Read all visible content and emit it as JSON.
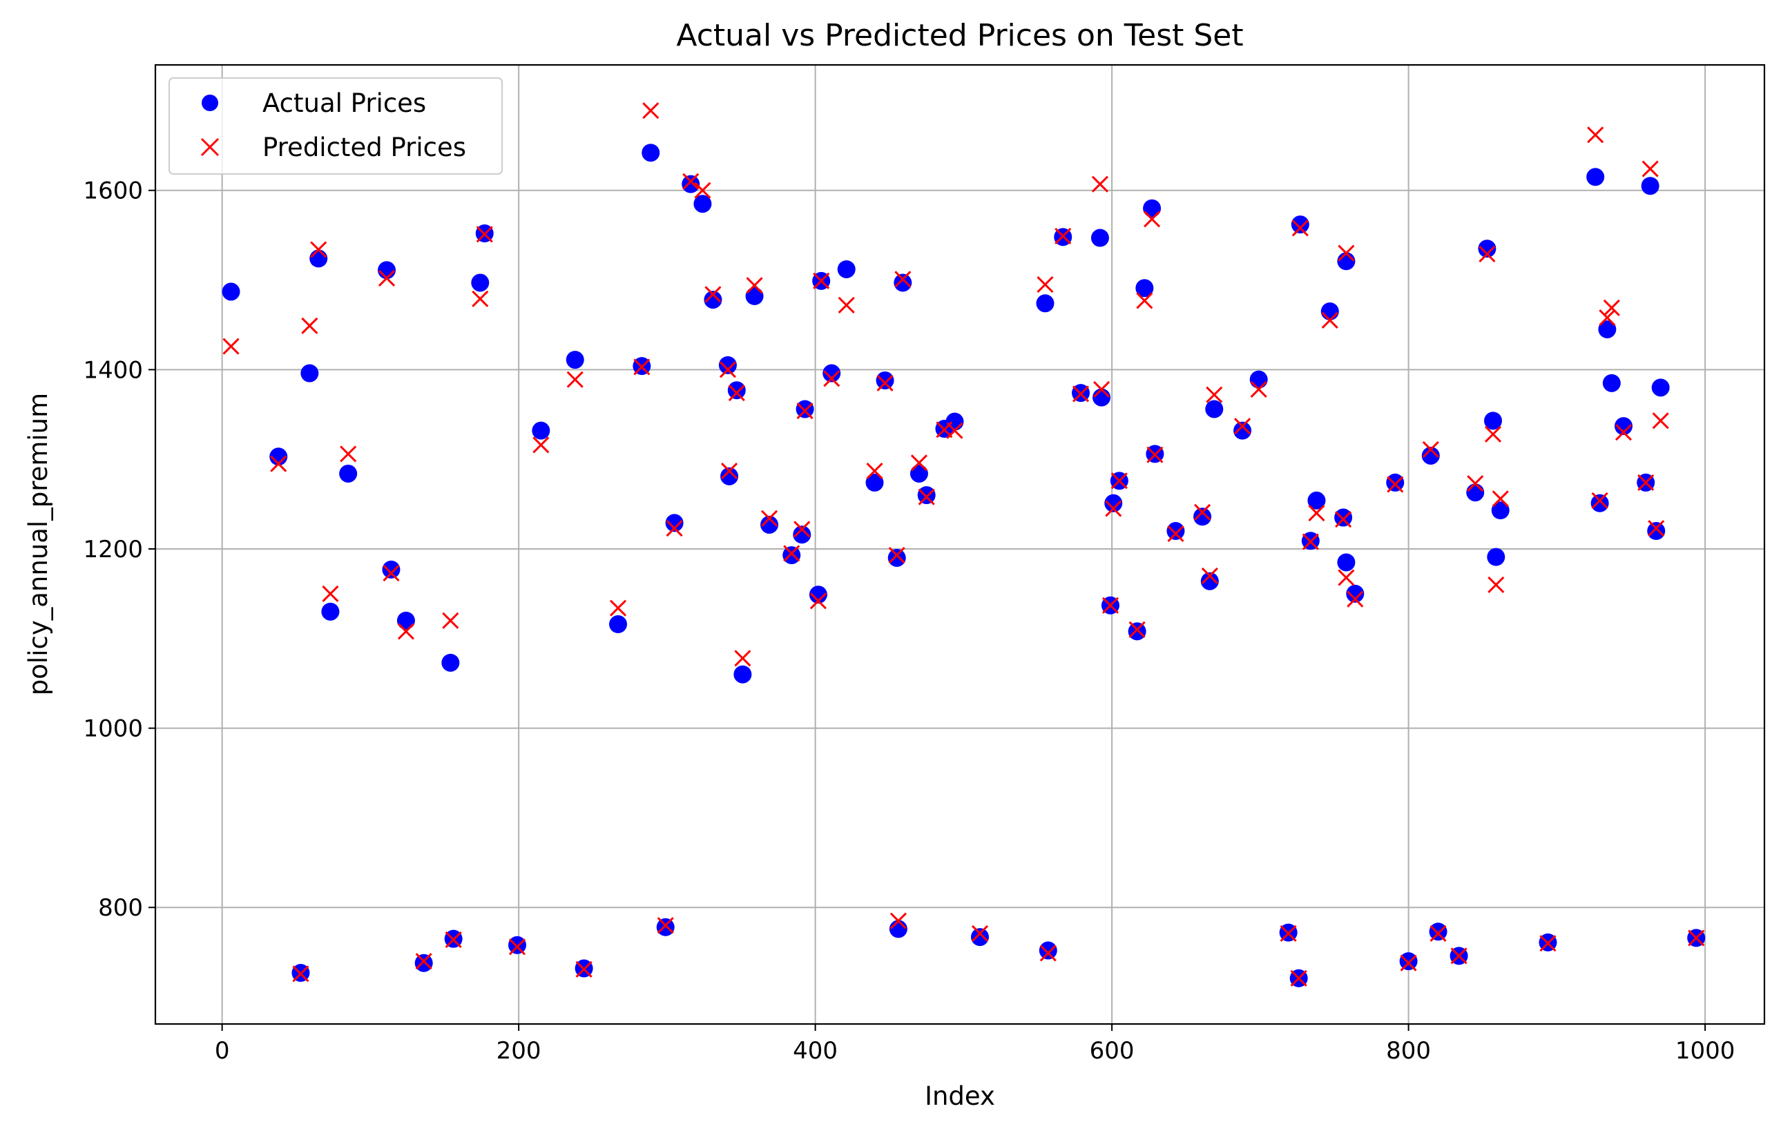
{
  "chart_data": {
    "type": "scatter",
    "title": "Actual vs Predicted Prices on Test Set",
    "xlabel": "Index",
    "ylabel": "policy_annual_premium",
    "xlim": [
      -45,
      1040
    ],
    "ylim": [
      670,
      1740
    ],
    "xticks": [
      0,
      200,
      400,
      600,
      800,
      1000
    ],
    "yticks": [
      800,
      1000,
      1200,
      1400,
      1600
    ],
    "grid": true,
    "legend_position": "top-left",
    "series": [
      {
        "name": "Actual Prices",
        "marker": "circle",
        "color": "#0000ff",
        "points": [
          [
            6,
            1487
          ],
          [
            38,
            1303
          ],
          [
            53,
            727
          ],
          [
            59,
            1396
          ],
          [
            65,
            1524
          ],
          [
            73,
            1130
          ],
          [
            85,
            1284
          ],
          [
            111,
            1511
          ],
          [
            114,
            1177
          ],
          [
            124,
            1120
          ],
          [
            136,
            738
          ],
          [
            154,
            1073
          ],
          [
            156,
            765
          ],
          [
            174,
            1497
          ],
          [
            177,
            1552
          ],
          [
            199,
            758
          ],
          [
            215,
            1332
          ],
          [
            238,
            1411
          ],
          [
            244,
            732
          ],
          [
            267,
            1116
          ],
          [
            283,
            1404
          ],
          [
            289,
            1642
          ],
          [
            299,
            778
          ],
          [
            305,
            1229
          ],
          [
            316,
            1607
          ],
          [
            324,
            1585
          ],
          [
            331,
            1478
          ],
          [
            341,
            1405
          ],
          [
            342,
            1281
          ],
          [
            347,
            1377
          ],
          [
            351,
            1060
          ],
          [
            359,
            1482
          ],
          [
            369,
            1227
          ],
          [
            384,
            1193
          ],
          [
            391,
            1216
          ],
          [
            393,
            1356
          ],
          [
            402,
            1149
          ],
          [
            404,
            1499
          ],
          [
            411,
            1396
          ],
          [
            421,
            1512
          ],
          [
            440,
            1274
          ],
          [
            447,
            1388
          ],
          [
            455,
            1190
          ],
          [
            456,
            776
          ],
          [
            459,
            1497
          ],
          [
            470,
            1284
          ],
          [
            475,
            1260
          ],
          [
            487,
            1334
          ],
          [
            494,
            1342
          ],
          [
            511,
            767
          ],
          [
            555,
            1474
          ],
          [
            557,
            752
          ],
          [
            567,
            1548
          ],
          [
            579,
            1374
          ],
          [
            592,
            1547
          ],
          [
            593,
            1369
          ],
          [
            599,
            1137
          ],
          [
            601,
            1251
          ],
          [
            605,
            1276
          ],
          [
            617,
            1108
          ],
          [
            622,
            1491
          ],
          [
            627,
            1580
          ],
          [
            629,
            1306
          ],
          [
            643,
            1220
          ],
          [
            661,
            1236
          ],
          [
            666,
            1164
          ],
          [
            669,
            1356
          ],
          [
            688,
            1332
          ],
          [
            699,
            1389
          ],
          [
            719,
            772
          ],
          [
            726,
            721
          ],
          [
            727,
            1562
          ],
          [
            734,
            1209
          ],
          [
            738,
            1254
          ],
          [
            747,
            1465
          ],
          [
            756,
            1235
          ],
          [
            758,
            1521
          ],
          [
            758,
            1185
          ],
          [
            764,
            1150
          ],
          [
            791,
            1274
          ],
          [
            800,
            740
          ],
          [
            815,
            1304
          ],
          [
            820,
            773
          ],
          [
            834,
            746
          ],
          [
            845,
            1263
          ],
          [
            853,
            1535
          ],
          [
            857,
            1343
          ],
          [
            859,
            1191
          ],
          [
            862,
            1243
          ],
          [
            894,
            761
          ],
          [
            926,
            1615
          ],
          [
            929,
            1251
          ],
          [
            934,
            1445
          ],
          [
            937,
            1385
          ],
          [
            945,
            1337
          ],
          [
            960,
            1274
          ],
          [
            963,
            1605
          ],
          [
            967,
            1220
          ],
          [
            970,
            1380
          ],
          [
            994,
            766
          ]
        ]
      },
      {
        "name": "Predicted Prices",
        "marker": "x",
        "color": "#ff0000",
        "points": [
          [
            6,
            1426
          ],
          [
            38,
            1295
          ],
          [
            53,
            726
          ],
          [
            59,
            1449
          ],
          [
            65,
            1534
          ],
          [
            73,
            1150
          ],
          [
            85,
            1306
          ],
          [
            111,
            1502
          ],
          [
            114,
            1173
          ],
          [
            124,
            1108
          ],
          [
            136,
            740
          ],
          [
            154,
            1120
          ],
          [
            156,
            764
          ],
          [
            174,
            1479
          ],
          [
            177,
            1551
          ],
          [
            199,
            756
          ],
          [
            215,
            1316
          ],
          [
            238,
            1389
          ],
          [
            244,
            731
          ],
          [
            267,
            1134
          ],
          [
            283,
            1403
          ],
          [
            289,
            1689
          ],
          [
            299,
            780
          ],
          [
            305,
            1223
          ],
          [
            316,
            1610
          ],
          [
            324,
            1600
          ],
          [
            331,
            1484
          ],
          [
            341,
            1400
          ],
          [
            342,
            1287
          ],
          [
            347,
            1374
          ],
          [
            351,
            1078
          ],
          [
            359,
            1494
          ],
          [
            369,
            1234
          ],
          [
            384,
            1195
          ],
          [
            391,
            1222
          ],
          [
            393,
            1354
          ],
          [
            402,
            1142
          ],
          [
            404,
            1499
          ],
          [
            411,
            1390
          ],
          [
            421,
            1472
          ],
          [
            440,
            1287
          ],
          [
            447,
            1385
          ],
          [
            455,
            1193
          ],
          [
            456,
            785
          ],
          [
            459,
            1501
          ],
          [
            470,
            1296
          ],
          [
            475,
            1258
          ],
          [
            487,
            1333
          ],
          [
            494,
            1332
          ],
          [
            511,
            771
          ],
          [
            555,
            1495
          ],
          [
            557,
            749
          ],
          [
            567,
            1549
          ],
          [
            579,
            1373
          ],
          [
            592,
            1607
          ],
          [
            593,
            1378
          ],
          [
            599,
            1137
          ],
          [
            601,
            1245
          ],
          [
            605,
            1276
          ],
          [
            617,
            1110
          ],
          [
            622,
            1477
          ],
          [
            627,
            1568
          ],
          [
            629,
            1305
          ],
          [
            643,
            1217
          ],
          [
            661,
            1241
          ],
          [
            666,
            1170
          ],
          [
            669,
            1372
          ],
          [
            688,
            1337
          ],
          [
            699,
            1378
          ],
          [
            719,
            771
          ],
          [
            726,
            721
          ],
          [
            727,
            1558
          ],
          [
            734,
            1208
          ],
          [
            738,
            1240
          ],
          [
            747,
            1455
          ],
          [
            756,
            1233
          ],
          [
            758,
            1530
          ],
          [
            758,
            1168
          ],
          [
            764,
            1144
          ],
          [
            791,
            1272
          ],
          [
            800,
            738
          ],
          [
            815,
            1311
          ],
          [
            820,
            771
          ],
          [
            834,
            746
          ],
          [
            845,
            1273
          ],
          [
            853,
            1529
          ],
          [
            857,
            1328
          ],
          [
            859,
            1160
          ],
          [
            862,
            1256
          ],
          [
            894,
            760
          ],
          [
            926,
            1662
          ],
          [
            929,
            1254
          ],
          [
            934,
            1458
          ],
          [
            937,
            1469
          ],
          [
            945,
            1330
          ],
          [
            960,
            1274
          ],
          [
            963,
            1624
          ],
          [
            967,
            1223
          ],
          [
            970,
            1343
          ],
          [
            994,
            766
          ]
        ]
      }
    ]
  }
}
